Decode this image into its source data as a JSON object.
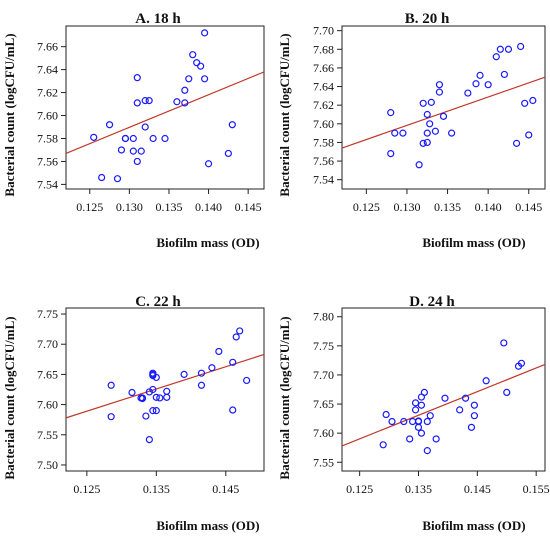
{
  "chart_data": [
    {
      "type": "scatter",
      "title": "A. 18 h",
      "xlabel": "Biofilm mass (OD)",
      "ylabel": "Bacterial count (logCFU/mL)",
      "xlim": [
        0.122,
        0.147
      ],
      "ylim": [
        7.536,
        7.678
      ],
      "xticks": [
        0.125,
        0.13,
        0.135,
        0.14,
        0.145
      ],
      "xtick_labels": [
        "0.125",
        "0.130",
        "0.135",
        "0.140",
        "0.145"
      ],
      "yticks": [
        7.54,
        7.56,
        7.58,
        7.6,
        7.62,
        7.64,
        7.66
      ],
      "ytick_labels": [
        "7.54",
        "7.56",
        "7.58",
        "7.60",
        "7.62",
        "7.64",
        "7.66"
      ],
      "x": [
        0.1255,
        0.1265,
        0.1275,
        0.1285,
        0.129,
        0.1295,
        0.1295,
        0.1305,
        0.1305,
        0.131,
        0.131,
        0.131,
        0.1315,
        0.132,
        0.132,
        0.1325,
        0.133,
        0.1345,
        0.136,
        0.137,
        0.137,
        0.1375,
        0.138,
        0.1385,
        0.139,
        0.1395,
        0.1395,
        0.14,
        0.1425,
        0.143
      ],
      "y": [
        7.581,
        7.546,
        7.592,
        7.545,
        7.57,
        7.58,
        7.58,
        7.569,
        7.58,
        7.56,
        7.611,
        7.633,
        7.569,
        7.613,
        7.59,
        7.613,
        7.58,
        7.58,
        7.612,
        7.611,
        7.622,
        7.632,
        7.653,
        7.646,
        7.643,
        7.672,
        7.632,
        7.558,
        7.567,
        7.592
      ],
      "fit": {
        "x": [
          0.122,
          0.147
        ],
        "y": [
          7.567,
          7.638
        ]
      }
    },
    {
      "type": "scatter",
      "title": "B. 20 h",
      "xlabel": "Biofilm mass (OD)",
      "ylabel": "Bacterial count (logCFU/mL)",
      "xlim": [
        0.122,
        0.147
      ],
      "ylim": [
        7.53,
        7.705
      ],
      "xticks": [
        0.125,
        0.13,
        0.135,
        0.14,
        0.145
      ],
      "xtick_labels": [
        "0.125",
        "0.130",
        "0.135",
        "0.140",
        "0.145"
      ],
      "yticks": [
        7.54,
        7.56,
        7.58,
        7.6,
        7.62,
        7.64,
        7.66,
        7.68,
        7.7
      ],
      "ytick_labels": [
        "7.54",
        "7.56",
        "7.58",
        "7.60",
        "7.62",
        "7.64",
        "7.66",
        "7.68",
        "7.70"
      ],
      "x": [
        0.128,
        0.128,
        0.1285,
        0.1295,
        0.1315,
        0.132,
        0.1325,
        0.132,
        0.1325,
        0.1328,
        0.133,
        0.1335,
        0.134,
        0.134,
        0.1345,
        0.1355,
        0.1375,
        0.1385,
        0.139,
        0.14,
        0.141,
        0.1415,
        0.142,
        0.1425,
        0.1435,
        0.144,
        0.1445,
        0.145,
        0.1455,
        0.1325
      ],
      "y": [
        7.568,
        7.612,
        7.59,
        7.59,
        7.556,
        7.579,
        7.61,
        7.622,
        7.59,
        7.6,
        7.623,
        7.592,
        7.642,
        7.634,
        7.608,
        7.59,
        7.633,
        7.643,
        7.652,
        7.642,
        7.672,
        7.68,
        7.653,
        7.68,
        7.579,
        7.683,
        7.622,
        7.588,
        7.625,
        7.58
      ],
      "fit": {
        "x": [
          0.122,
          0.147
        ],
        "y": [
          7.574,
          7.65
        ]
      }
    },
    {
      "type": "scatter",
      "title": "C. 22 h",
      "xlabel": "Biofilm mass (OD)",
      "ylabel": "Bacterial count (logCFU/mL)",
      "xlim": [
        0.122,
        0.1505
      ],
      "ylim": [
        7.49,
        7.76
      ],
      "xticks": [
        0.125,
        0.135,
        0.145
      ],
      "xtick_labels": [
        "0.125",
        "0.135",
        "0.145"
      ],
      "yticks": [
        7.5,
        7.55,
        7.6,
        7.65,
        7.7,
        7.75
      ],
      "ytick_labels": [
        "7.50",
        "7.55",
        "7.60",
        "7.65",
        "7.70",
        "7.75"
      ],
      "x": [
        0.1285,
        0.1285,
        0.1315,
        0.1328,
        0.133,
        0.133,
        0.1335,
        0.134,
        0.134,
        0.1345,
        0.135,
        0.1355,
        0.1345,
        0.135,
        0.1365,
        0.1345,
        0.1365,
        0.139,
        0.1415,
        0.143,
        0.1415,
        0.144,
        0.146,
        0.146,
        0.1465,
        0.147,
        0.148,
        0.1345,
        0.135,
        0.1345
      ],
      "y": [
        7.632,
        7.58,
        7.62,
        7.611,
        7.611,
        7.61,
        7.581,
        7.542,
        7.621,
        7.652,
        7.645,
        7.611,
        7.59,
        7.59,
        7.622,
        7.648,
        7.612,
        7.65,
        7.632,
        7.661,
        7.652,
        7.688,
        7.591,
        7.67,
        7.712,
        7.722,
        7.64,
        7.625,
        7.612,
        7.65
      ],
      "fit": {
        "x": [
          0.122,
          0.1505
        ],
        "y": [
          7.578,
          7.683
        ]
      }
    },
    {
      "type": "scatter",
      "title": "D. 24 h",
      "xlabel": "Biofilm mass (OD)",
      "ylabel": "Bacterial count (logCFU/mL)",
      "xlim": [
        0.122,
        0.1565
      ],
      "ylim": [
        7.535,
        7.815
      ],
      "xticks": [
        0.125,
        0.135,
        0.145,
        0.155
      ],
      "xtick_labels": [
        "0.125",
        "0.135",
        "0.145",
        "0.155"
      ],
      "yticks": [
        7.55,
        7.6,
        7.65,
        7.7,
        7.75,
        7.8
      ],
      "ytick_labels": [
        "7.55",
        "7.60",
        "7.65",
        "7.70",
        "7.75",
        "7.80"
      ],
      "x": [
        0.129,
        0.1295,
        0.1305,
        0.1325,
        0.1335,
        0.134,
        0.1345,
        0.1345,
        0.135,
        0.135,
        0.1355,
        0.1355,
        0.1355,
        0.136,
        0.1365,
        0.137,
        0.138,
        0.1395,
        0.142,
        0.143,
        0.144,
        0.1445,
        0.1445,
        0.1465,
        0.1495,
        0.15,
        0.152,
        0.1525,
        0.1365,
        0.135
      ],
      "y": [
        7.58,
        7.632,
        7.62,
        7.62,
        7.59,
        7.62,
        7.64,
        7.652,
        7.61,
        7.621,
        7.662,
        7.648,
        7.6,
        7.67,
        7.57,
        7.63,
        7.59,
        7.66,
        7.64,
        7.66,
        7.61,
        7.63,
        7.648,
        7.69,
        7.755,
        7.67,
        7.715,
        7.72,
        7.62,
        7.62
      ],
      "fit": {
        "x": [
          0.122,
          0.1565
        ],
        "y": [
          7.578,
          7.718
        ]
      }
    }
  ]
}
